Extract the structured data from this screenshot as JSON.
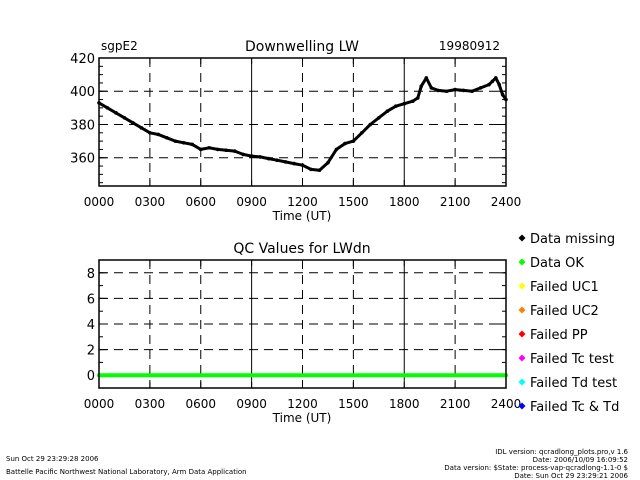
{
  "chart_data": [
    {
      "type": "line",
      "site": "sgpE2",
      "title": "Downwelling LW",
      "date": "19980912",
      "xlabel": "Time (UT)",
      "ylabel": "",
      "xlim": [
        0,
        2400
      ],
      "ylim": [
        343,
        420
      ],
      "x_ticks": [
        "0000",
        "0300",
        "0600",
        "0900",
        "1200",
        "1500",
        "1800",
        "2100",
        "2400"
      ],
      "y_ticks": [
        "360",
        "380",
        "400",
        "420"
      ],
      "grid": true,
      "series": [
        {
          "x": [
            0,
            50,
            100,
            150,
            200,
            250,
            300,
            350,
            400,
            450,
            500,
            550,
            600,
            650,
            700,
            750,
            800,
            850,
            900,
            950,
            1000,
            1050,
            1100,
            1150,
            1200,
            1250,
            1300,
            1350,
            1400,
            1450,
            1500,
            1550,
            1600,
            1650,
            1700,
            1750,
            1800,
            1850,
            1880,
            1900,
            1930,
            1960,
            2000,
            2050,
            2100,
            2150,
            2200,
            2250,
            2300,
            2320,
            2340,
            2360,
            2380,
            2400
          ],
          "y": [
            393,
            390,
            387,
            384,
            381,
            378,
            375,
            374,
            372,
            370,
            369,
            368,
            365,
            366,
            365,
            364.5,
            364,
            362,
            361,
            360.5,
            359.5,
            358.5,
            357.5,
            356.5,
            355.5,
            353,
            352.5,
            357,
            365,
            368.5,
            370,
            375,
            380,
            384,
            388,
            391,
            392.5,
            394,
            396,
            403,
            408,
            402,
            400.5,
            400,
            401,
            400.5,
            400,
            402,
            404,
            406,
            408,
            404,
            398,
            395
          ]
        }
      ]
    },
    {
      "type": "line",
      "title": "QC Values for LWdn",
      "xlabel": "Time (UT)",
      "ylabel": "",
      "xlim": [
        0,
        2400
      ],
      "ylim": [
        -1,
        9
      ],
      "x_ticks": [
        "0000",
        "0300",
        "0600",
        "0900",
        "1200",
        "1500",
        "1800",
        "2100",
        "2400"
      ],
      "y_ticks": [
        "0",
        "2",
        "4",
        "6",
        "8"
      ],
      "grid": true,
      "legend_placement": "right",
      "legend": [
        {
          "label": "Data missing",
          "color": "#000000"
        },
        {
          "label": "Data OK",
          "color": "#00ff00"
        },
        {
          "label": "Failed UC1",
          "color": "#ffff00"
        },
        {
          "label": "Failed UC2",
          "color": "#ff8000"
        },
        {
          "label": "Failed PP",
          "color": "#ff0000"
        },
        {
          "label": "Failed Tc test",
          "color": "#ff00ff"
        },
        {
          "label": "Failed Td test",
          "color": "#00ffff"
        },
        {
          "label": "Failed Tc & Td",
          "color": "#0000ff"
        }
      ],
      "series": [
        {
          "x": [
            0,
            2400
          ],
          "y": [
            0,
            0
          ],
          "color": "#00ff00"
        }
      ]
    }
  ],
  "footer": {
    "left_timestamp": "Sun Oct 29 23:29:28 2006",
    "left_org": "Battelle Pacific Northwest National Laboratory, Arm Data Application",
    "right_lines": [
      "IDL version: qcradlong_plots.pro,v 1.6",
      "Date: 2006/10/09 16:09:52",
      "Data version: $State: process-vap-qcradlong-1.1-0 $",
      "Date: Sun Oct 29 23:29:21 2006"
    ]
  }
}
